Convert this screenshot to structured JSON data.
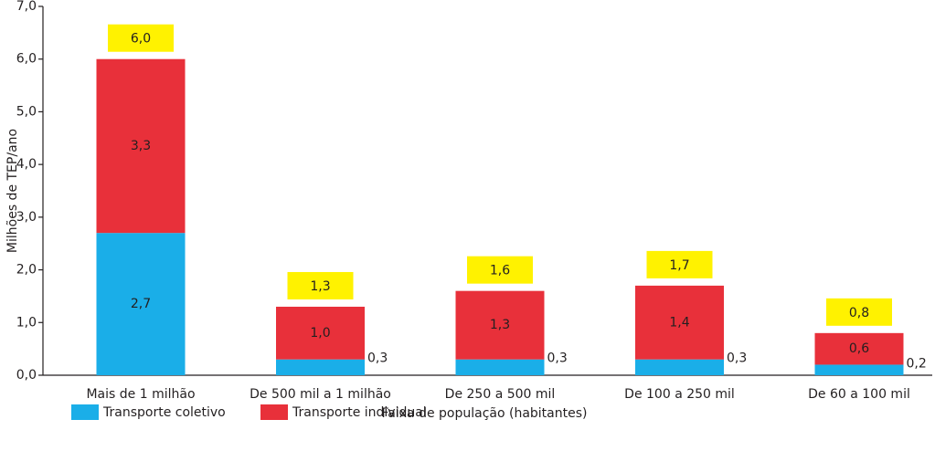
{
  "chart_data": {
    "type": "stacked-bar",
    "y_label": "Milhões de TEP/ano",
    "x_label": "Faixa de população (habitantes)",
    "categories": [
      "Mais de 1 milhão",
      "De 500 mil a 1 milhão",
      "De 250 a 500 mil",
      "De 100 a 250 mil",
      "De 60 a 100 mil"
    ],
    "series": [
      {
        "name": "Transporte coletivo",
        "color": "#1aaee8",
        "values": [
          2.7,
          0.3,
          0.3,
          0.3,
          0.2
        ],
        "value_labels": [
          "2,7",
          "0,3",
          "0,3",
          "0,3",
          "0,2"
        ]
      },
      {
        "name": "Transporte individual",
        "color": "#e8303a",
        "values": [
          3.3,
          1.0,
          1.3,
          1.4,
          0.6
        ],
        "value_labels": [
          "3,3",
          "1,0",
          "1,3",
          "1,4",
          "0,6"
        ]
      }
    ],
    "totals": [
      6.0,
      1.3,
      1.6,
      1.7,
      0.8
    ],
    "total_labels": [
      "6,0",
      "1,3",
      "1,6",
      "1,7",
      "0,8"
    ],
    "total_label_color": "#fff200",
    "ylim": [
      0,
      7
    ],
    "yticks": [
      {
        "value": 0,
        "label": "0,0"
      },
      {
        "value": 1,
        "label": "1,0"
      },
      {
        "value": 2,
        "label": "2,0"
      },
      {
        "value": 3,
        "label": "3,0"
      },
      {
        "value": 4,
        "label": "4,0"
      },
      {
        "value": 5,
        "label": "5,0"
      },
      {
        "value": 6,
        "label": "6,0"
      },
      {
        "value": 7,
        "label": "7,0"
      }
    ],
    "grid": false
  }
}
